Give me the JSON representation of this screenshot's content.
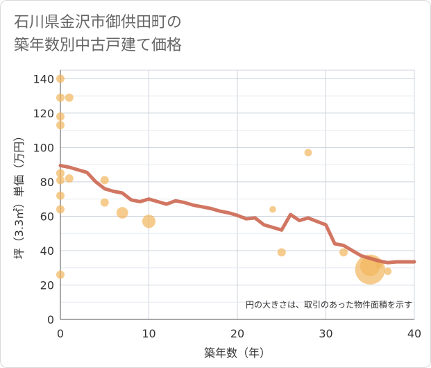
{
  "chart_data": {
    "type": "scatter",
    "title_lines": [
      "石川県金沢市御供田町の",
      "築年数別中古戸建て価格"
    ],
    "xlabel": "築年数（年）",
    "ylabel": "坪（3.3㎡）単価（万円）",
    "xlim": [
      0,
      40
    ],
    "ylim": [
      0,
      145
    ],
    "x_ticks": [
      0,
      10,
      20,
      30,
      40
    ],
    "y_ticks": [
      0,
      20,
      40,
      60,
      80,
      100,
      120,
      140
    ],
    "grid": true,
    "note": "円の大きさは、取引のあった物件面積を示す",
    "colors": {
      "points": "#f2b75e",
      "trend": "#cd6a55"
    },
    "points": [
      {
        "x": 0,
        "y": 140,
        "size": 1
      },
      {
        "x": 0,
        "y": 129,
        "size": 1
      },
      {
        "x": 1,
        "y": 129,
        "size": 1
      },
      {
        "x": 0,
        "y": 118,
        "size": 1
      },
      {
        "x": 0,
        "y": 113,
        "size": 1
      },
      {
        "x": 0,
        "y": 85,
        "size": 1
      },
      {
        "x": 0,
        "y": 81,
        "size": 1
      },
      {
        "x": 1,
        "y": 82,
        "size": 1
      },
      {
        "x": 0,
        "y": 72,
        "size": 1
      },
      {
        "x": 0,
        "y": 64,
        "size": 1
      },
      {
        "x": 0,
        "y": 26,
        "size": 1
      },
      {
        "x": 5,
        "y": 81,
        "size": 1
      },
      {
        "x": 5,
        "y": 68,
        "size": 1
      },
      {
        "x": 7,
        "y": 62,
        "size": 1.4
      },
      {
        "x": 10,
        "y": 57,
        "size": 1.6
      },
      {
        "x": 24,
        "y": 64,
        "size": 0.8
      },
      {
        "x": 25,
        "y": 39,
        "size": 1
      },
      {
        "x": 28,
        "y": 97,
        "size": 0.9
      },
      {
        "x": 32,
        "y": 39,
        "size": 1
      },
      {
        "x": 35,
        "y": 29,
        "size": 3.6
      },
      {
        "x": 35,
        "y": 31,
        "size": 2.4
      },
      {
        "x": 36,
        "y": 32,
        "size": 0.9
      },
      {
        "x": 37,
        "y": 28,
        "size": 0.9
      }
    ],
    "trend": {
      "x": [
        0,
        1,
        2,
        3,
        4,
        5,
        6,
        7,
        8,
        9,
        10,
        11,
        12,
        13,
        14,
        15,
        16,
        17,
        18,
        19,
        20,
        21,
        22,
        23,
        24,
        25,
        26,
        27,
        28,
        29,
        30,
        31,
        32,
        33,
        34,
        35,
        36,
        37,
        38,
        39,
        40
      ],
      "y": [
        89.5,
        88.5,
        87,
        85.5,
        80,
        76,
        74.5,
        73.5,
        69.5,
        68.5,
        70,
        68.5,
        67,
        69,
        68,
        66.5,
        65.5,
        64.5,
        63,
        62,
        60.5,
        58.5,
        59,
        55,
        53.5,
        52,
        61,
        57.5,
        59,
        57,
        55,
        44,
        43,
        40,
        37,
        35.5,
        34,
        33,
        33.5,
        33.5,
        33.5
      ]
    }
  }
}
